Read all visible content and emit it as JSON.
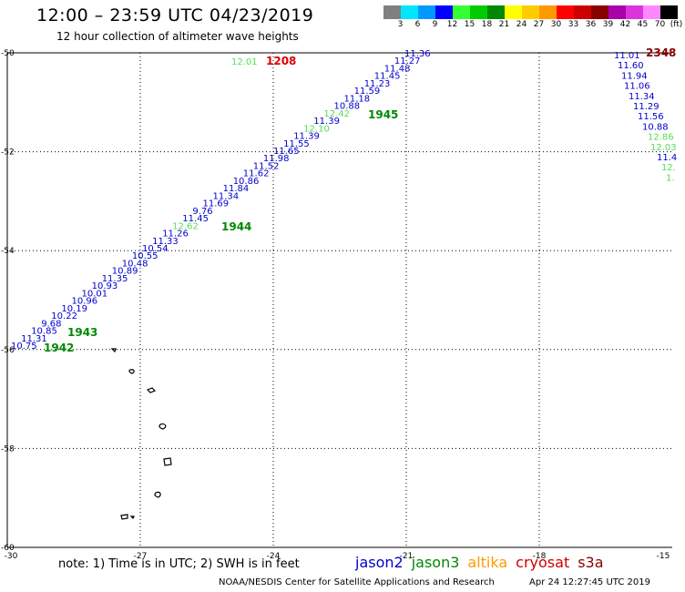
{
  "header": {
    "title": "12:00 – 23:59 UTC 04/23/2019",
    "subtitle": "12 hour collection of altimeter wave heights"
  },
  "colorbar": {
    "unit_label": "(ft)",
    "bins": [
      {
        "label": "3",
        "color": "#808080"
      },
      {
        "label": "6",
        "color": "#00e6ff"
      },
      {
        "label": "9",
        "color": "#0099ff"
      },
      {
        "label": "12",
        "color": "#0000ff"
      },
      {
        "label": "15",
        "color": "#33ff33"
      },
      {
        "label": "18",
        "color": "#00cc00"
      },
      {
        "label": "21",
        "color": "#008800"
      },
      {
        "label": "24",
        "color": "#ffff00"
      },
      {
        "label": "27",
        "color": "#ffcc00"
      },
      {
        "label": "30",
        "color": "#ff9900"
      },
      {
        "label": "33",
        "color": "#ff0000"
      },
      {
        "label": "36",
        "color": "#cc0000"
      },
      {
        "label": "39",
        "color": "#880000"
      },
      {
        "label": "42",
        "color": "#aa00aa"
      },
      {
        "label": "45",
        "color": "#dd33dd"
      },
      {
        "label": "70",
        "color": "#ff88ff"
      },
      {
        "label": "",
        "color": "#000000"
      }
    ]
  },
  "map": {
    "lon_ticks": [
      "-30",
      "-27",
      "-24",
      "-21",
      "-18",
      "-15"
    ],
    "lat_ticks": [
      "-50",
      "-52",
      "-54",
      "-56",
      "-58",
      "-60"
    ],
    "lon_range": [
      -30,
      -15
    ],
    "lat_range": [
      -60,
      -50
    ]
  },
  "tracks": {
    "main": {
      "values": [
        "10.75",
        "11.31",
        "10.85",
        "9.68",
        "10.22",
        "10.19",
        "10.96",
        "10.01",
        "10.93",
        "11.35",
        "10.89",
        "10.48",
        "10.55",
        "10.54",
        "11.33",
        "11.26",
        "12.62",
        "11.45",
        "9.76",
        "11.69",
        "11.34",
        "11.84",
        "10.86",
        "11.62",
        "11.52",
        "11.98",
        "11.65",
        "11.55",
        "11.39",
        "12.10",
        "11.39",
        "12.42",
        "10.88",
        "11.18",
        "11.59",
        "11.23",
        "11.45",
        "11.48",
        "11.27",
        "11.36"
      ],
      "colors": [
        "#0000cc",
        "#0000cc",
        "#0000cc",
        "#0000cc",
        "#0000cc",
        "#0000cc",
        "#0000cc",
        "#0000cc",
        "#0000cc",
        "#0000cc",
        "#0000cc",
        "#0000cc",
        "#0000cc",
        "#0000cc",
        "#0000cc",
        "#0000cc",
        "#55dd55",
        "#0000cc",
        "#0000cc",
        "#0000cc",
        "#0000cc",
        "#0000cc",
        "#0000cc",
        "#0000cc",
        "#0000cc",
        "#0000cc",
        "#0000cc",
        "#0000cc",
        "#0000cc",
        "#55dd55",
        "#0000cc",
        "#55dd55",
        "#0000cc",
        "#0000cc",
        "#0000cc",
        "#0000cc",
        "#0000cc",
        "#0000cc",
        "#0000cc",
        "#0000cc"
      ]
    },
    "east": {
      "values": [
        "11.01",
        "11.60",
        "11.94",
        "11.06",
        "11.34",
        "11.29",
        "11.56",
        "10.88",
        "12.86",
        "12.03",
        "11.4",
        "12.",
        "1."
      ],
      "colors": [
        "#0000cc",
        "#0000cc",
        "#0000cc",
        "#0000cc",
        "#0000cc",
        "#0000cc",
        "#0000cc",
        "#0000cc",
        "#55dd55",
        "#55dd55",
        "#0000cc",
        "#55dd55",
        "#55dd55"
      ]
    }
  },
  "time_labels": [
    {
      "text": "1942",
      "color": "#008800"
    },
    {
      "text": "1943",
      "color": "#008800"
    },
    {
      "text": "1944",
      "color": "#008800"
    },
    {
      "text": "1945",
      "color": "#008800"
    },
    {
      "text": "1208",
      "color": "#dd0000"
    },
    {
      "text": "2348",
      "color": "#880000"
    }
  ],
  "extra_labels": [
    {
      "text": "12.01",
      "color": "#55dd55"
    }
  ],
  "footer": {
    "note": "note: 1) Time is in UTC; 2) SWH is in feet",
    "legend": [
      {
        "text": "jason2",
        "color": "#0000cc"
      },
      {
        "text": "jason3",
        "color": "#008800"
      },
      {
        "text": "altika",
        "color": "#ff9900"
      },
      {
        "text": "cryosat",
        "color": "#cc0000"
      },
      {
        "text": "s3a",
        "color": "#880000"
      }
    ],
    "credit": "NOAA/NESDIS Center for Satellite Applications and Research",
    "timestamp": "Apr 24 12:27:45 UTC 2019"
  }
}
